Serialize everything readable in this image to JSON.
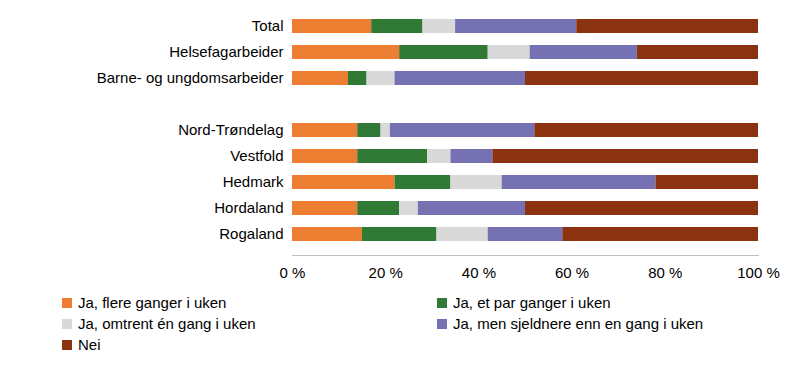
{
  "chart_data": {
    "type": "bar",
    "orientation": "horizontal",
    "stacked": true,
    "grid": false,
    "legend": "bottom",
    "data_labels": false,
    "categories": [
      "Total",
      "Helsefagarbeider",
      "Barne- og ungdomsarbeider",
      null,
      "Nord-Trøndelag",
      "Vestfold",
      "Hedmark",
      "Hordaland",
      "Rogaland"
    ],
    "xlim": [
      0,
      100
    ],
    "xticks": [
      {
        "value": 0,
        "label": "0 %"
      },
      {
        "value": 20,
        "label": "20 %"
      },
      {
        "value": 40,
        "label": "40 %"
      },
      {
        "value": 60,
        "label": "60 %"
      },
      {
        "value": 80,
        "label": "80 %"
      },
      {
        "value": 100,
        "label": "100 %"
      }
    ],
    "series": [
      {
        "name": "Ja, flere ganger i uken",
        "color": "#ed7d31",
        "values": [
          17,
          23,
          12,
          null,
          14,
          14,
          22,
          14,
          15
        ]
      },
      {
        "name": "Ja, et par ganger i uken",
        "color": "#317a35",
        "values": [
          11,
          19,
          4,
          null,
          5,
          15,
          12,
          9,
          16
        ]
      },
      {
        "name": "Ja, omtrent én gang i uken",
        "color": "#d9d9d9",
        "values": [
          7,
          9,
          6,
          null,
          2,
          5,
          11,
          4,
          11
        ]
      },
      {
        "name": "Ja, men sjeldnere enn en gang i uken",
        "color": "#7571b3",
        "values": [
          26,
          23,
          28,
          null,
          31,
          9,
          33,
          23,
          16
        ]
      },
      {
        "name": "Nei",
        "color": "#8b3311",
        "values": [
          39,
          26,
          50,
          null,
          48,
          57,
          22,
          50,
          42
        ]
      }
    ]
  }
}
